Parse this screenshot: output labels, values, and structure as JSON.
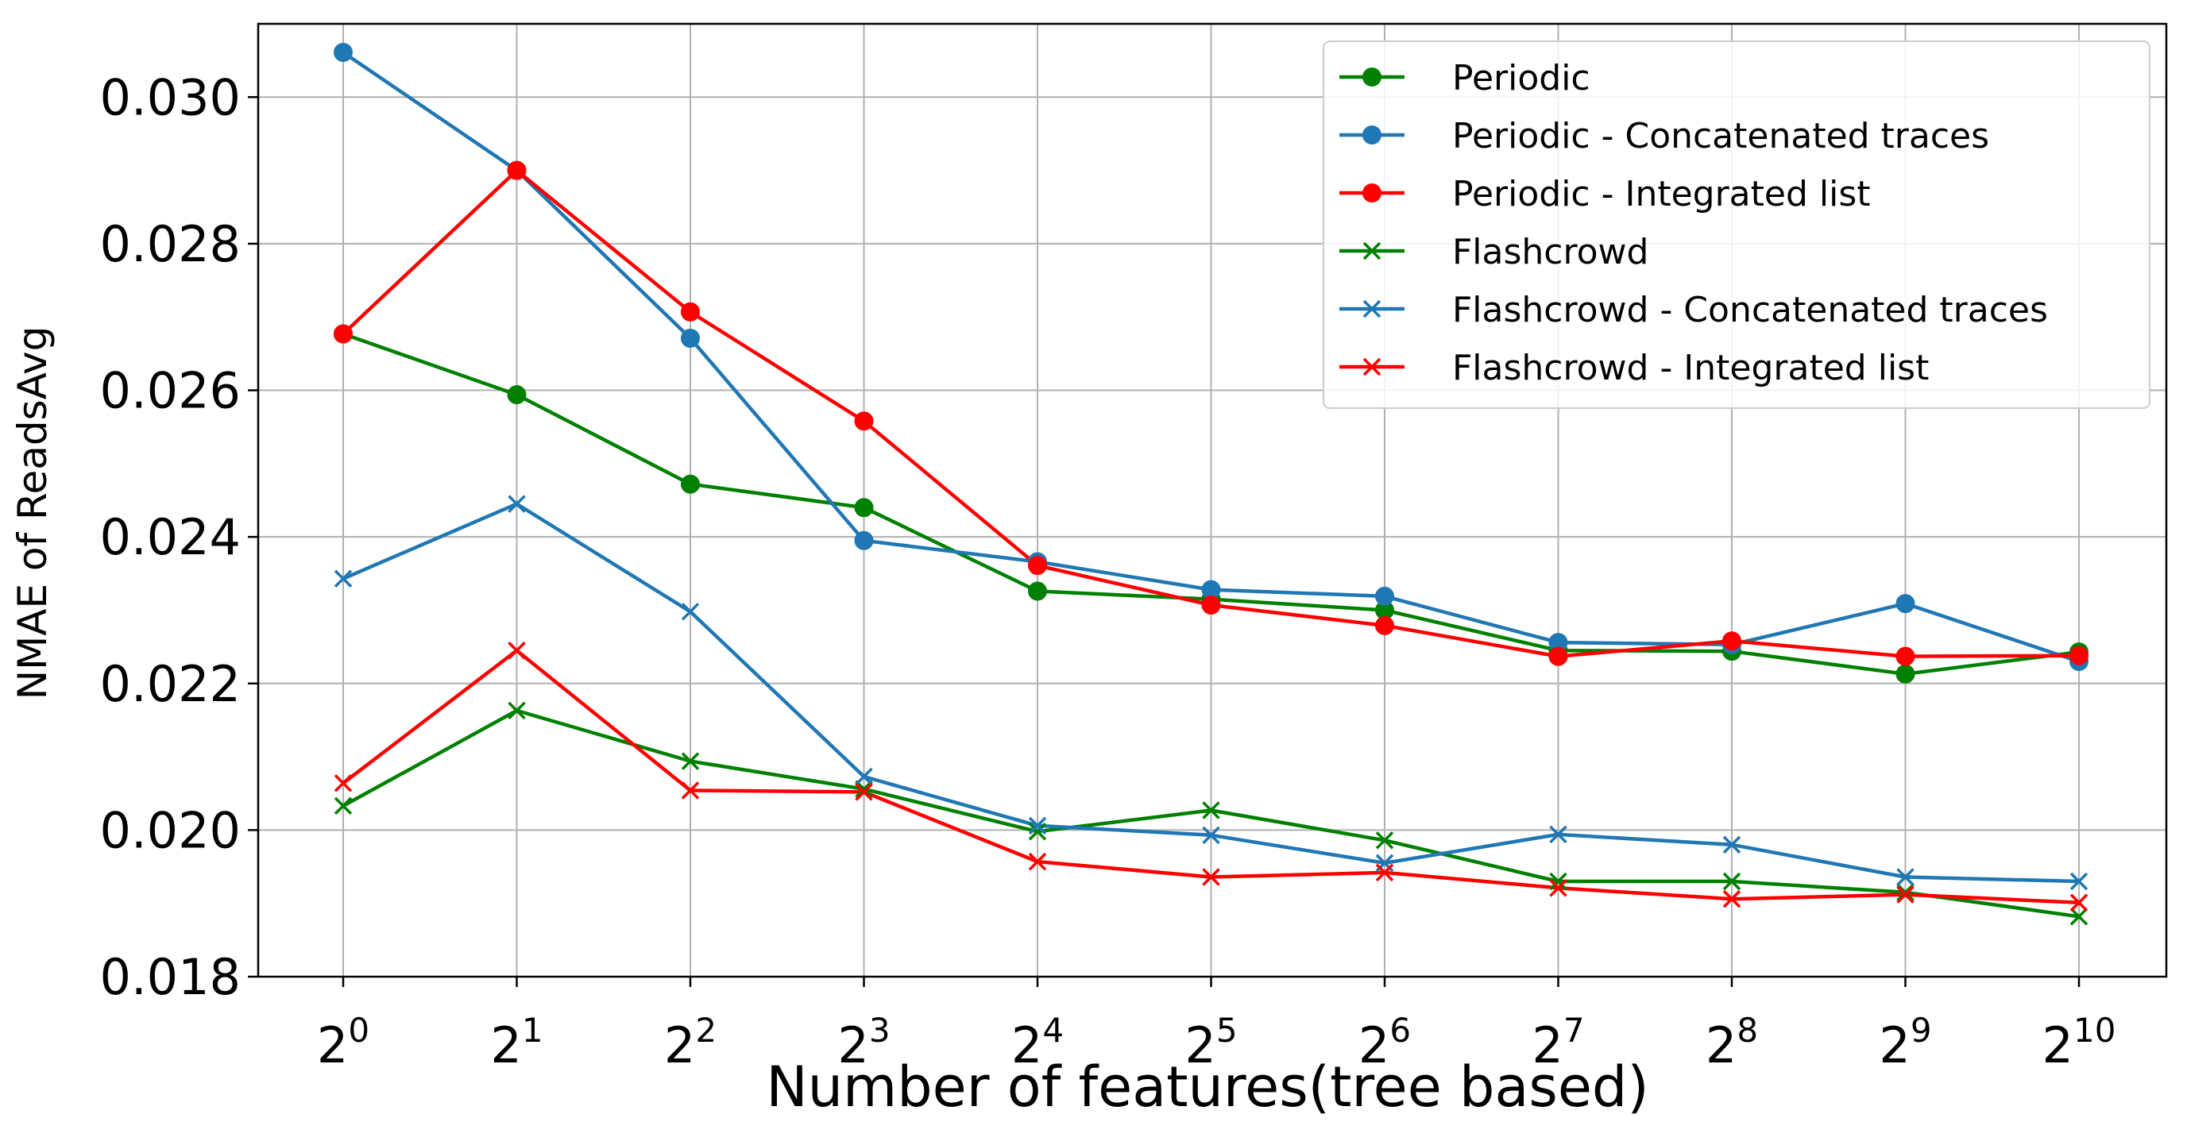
{
  "chart_data": {
    "type": "line",
    "title": "",
    "xlabel": "Number of features(tree based)",
    "ylabel": "NMAE of ReadsAvg",
    "x_scale": "log2",
    "x": [
      1,
      2,
      4,
      8,
      16,
      32,
      64,
      128,
      256,
      512,
      1024
    ],
    "x_tick_labels": [
      {
        "base": "2",
        "exp": "0"
      },
      {
        "base": "2",
        "exp": "1"
      },
      {
        "base": "2",
        "exp": "2"
      },
      {
        "base": "2",
        "exp": "3"
      },
      {
        "base": "2",
        "exp": "4"
      },
      {
        "base": "2",
        "exp": "5"
      },
      {
        "base": "2",
        "exp": "6"
      },
      {
        "base": "2",
        "exp": "7"
      },
      {
        "base": "2",
        "exp": "8"
      },
      {
        "base": "2",
        "exp": "9"
      },
      {
        "base": "2",
        "exp": "10"
      }
    ],
    "ylim": [
      0.018,
      0.031
    ],
    "y_ticks": [
      0.018,
      0.02,
      0.022,
      0.024,
      0.026,
      0.028,
      0.03
    ],
    "y_tick_labels": [
      "0.018",
      "0.020",
      "0.022",
      "0.024",
      "0.026",
      "0.028",
      "0.030"
    ],
    "grid": true,
    "legend_position": "top-right",
    "series": [
      {
        "name": "Periodic",
        "color": "#008000",
        "marker": "circle",
        "values": [
          0.02677,
          0.02594,
          0.02472,
          0.0244,
          0.02326,
          0.02315,
          0.023,
          0.02245,
          0.02244,
          0.02213,
          0.02243
        ]
      },
      {
        "name": "Periodic - Concatenated traces",
        "color": "#1f77b4",
        "marker": "circle",
        "values": [
          0.03061,
          0.029,
          0.02671,
          0.02395,
          0.02366,
          0.02328,
          0.02319,
          0.02256,
          0.02253,
          0.02309,
          0.0223
        ]
      },
      {
        "name": "Periodic - Integrated list",
        "color": "#ff0000",
        "marker": "circle",
        "values": [
          0.02677,
          0.029,
          0.02707,
          0.02558,
          0.02361,
          0.02307,
          0.02279,
          0.02237,
          0.02258,
          0.02237,
          0.02238
        ]
      },
      {
        "name": "Flashcrowd",
        "color": "#008000",
        "marker": "x",
        "values": [
          0.02033,
          0.02163,
          0.02094,
          0.02056,
          0.01998,
          0.02027,
          0.01986,
          0.0193,
          0.0193,
          0.01915,
          0.01882
        ]
      },
      {
        "name": "Flashcrowd - Concatenated traces",
        "color": "#1f77b4",
        "marker": "x",
        "values": [
          0.02343,
          0.02445,
          0.02298,
          0.02073,
          0.02006,
          0.01993,
          0.01955,
          0.01994,
          0.0198,
          0.01936,
          0.0193
        ]
      },
      {
        "name": "Flashcrowd - Integrated list",
        "color": "#ff0000",
        "marker": "x",
        "values": [
          0.02064,
          0.02245,
          0.02054,
          0.02052,
          0.01957,
          0.01936,
          0.01942,
          0.01921,
          0.01906,
          0.01912,
          0.01901
        ]
      }
    ]
  }
}
